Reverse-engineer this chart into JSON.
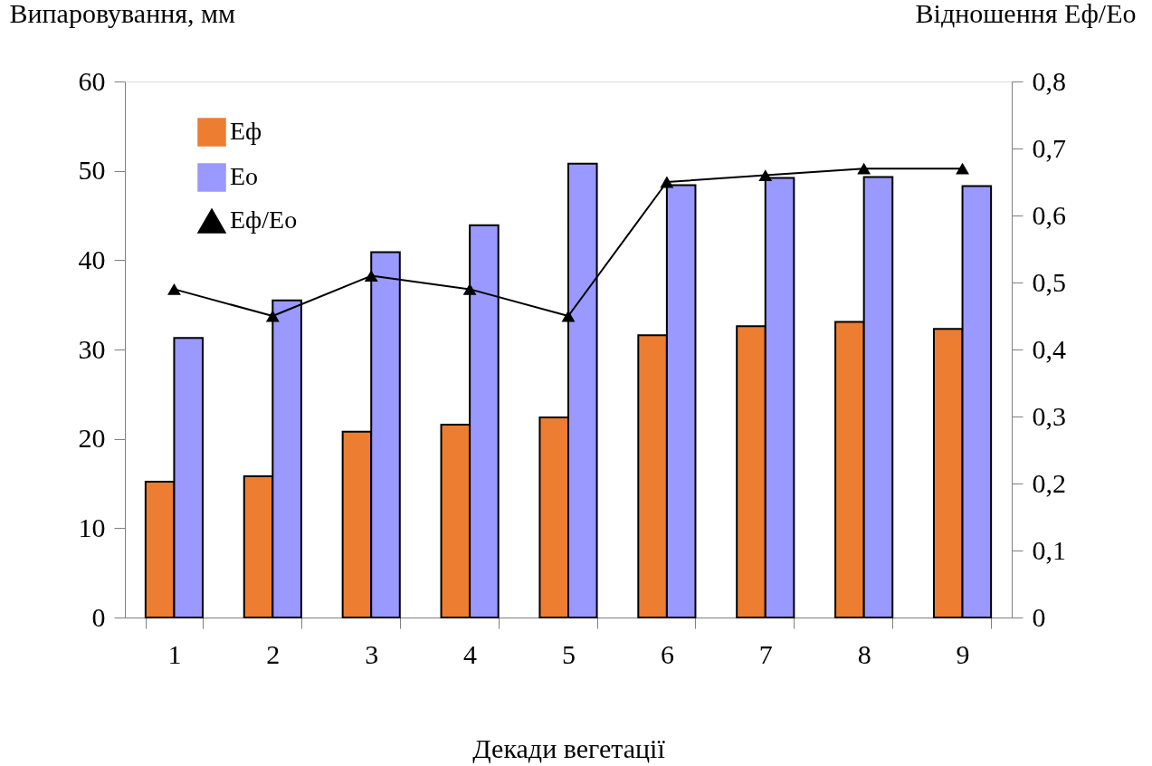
{
  "chart_data": {
    "type": "bar",
    "xlabel": "Декади вегетації",
    "ylabel": "Випаровування, мм",
    "y2label": "Відношення Еф/Ео",
    "categories": [
      "1",
      "2",
      "3",
      "4",
      "5",
      "6",
      "7",
      "8",
      "9"
    ],
    "series": [
      {
        "name": "Еф",
        "color": "#ed7d31",
        "values": [
          15.2,
          15.8,
          20.8,
          21.6,
          22.4,
          31.6,
          32.6,
          33.1,
          32.3
        ]
      },
      {
        "name": "Ео",
        "color": "#9999ff",
        "values": [
          31.3,
          35.5,
          40.9,
          43.9,
          50.8,
          48.4,
          49.2,
          49.3,
          48.3
        ]
      },
      {
        "name": "Еф/Ео",
        "type": "line",
        "axis": "y2",
        "color": "#000000",
        "values": [
          0.49,
          0.45,
          0.51,
          0.49,
          0.45,
          0.65,
          0.66,
          0.67,
          0.67
        ]
      }
    ],
    "ylim": [
      0,
      60
    ],
    "yticks": [
      0,
      10,
      20,
      30,
      40,
      50,
      60
    ],
    "y2lim": [
      0,
      0.8
    ],
    "y2ticks": [
      0,
      {
        "value": 0.1,
        "label": "0,1"
      },
      {
        "value": 0.2,
        "label": "0,2"
      },
      {
        "value": 0.3,
        "label": "0,3"
      },
      {
        "value": 0.4,
        "label": "0,4"
      },
      {
        "value": 0.5,
        "label": "0,5"
      },
      {
        "value": 0.6,
        "label": "0,6"
      },
      {
        "value": 0.7,
        "label": "0,7"
      },
      {
        "value": 0.8,
        "label": "0,8"
      }
    ],
    "legend": "top left",
    "line_style": "solid",
    "marker": "triangle",
    "grid": false
  }
}
